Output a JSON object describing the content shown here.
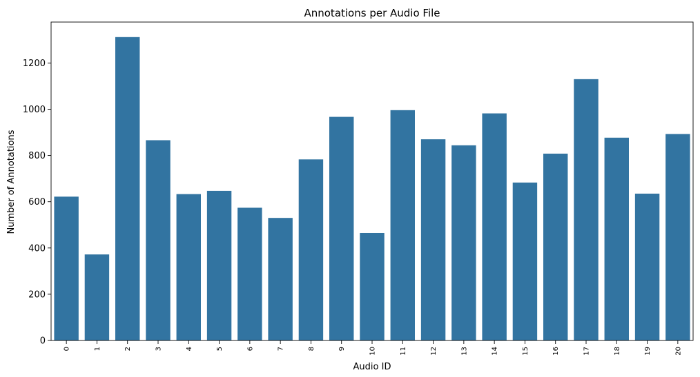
{
  "chart_data": {
    "type": "bar",
    "title": "Annotations per Audio File",
    "xlabel": "Audio ID",
    "ylabel": "Number of Annotations",
    "categories": [
      "0",
      "1",
      "2",
      "3",
      "4",
      "5",
      "6",
      "7",
      "8",
      "9",
      "10",
      "11",
      "12",
      "13",
      "14",
      "15",
      "16",
      "17",
      "18",
      "19",
      "20"
    ],
    "values": [
      622,
      372,
      1312,
      866,
      633,
      647,
      574,
      530,
      783,
      967,
      465,
      996,
      870,
      844,
      982,
      683,
      808,
      1130,
      877,
      635,
      893
    ],
    "ylim": [
      0,
      1377
    ],
    "yticks": [
      0,
      200,
      400,
      600,
      800,
      1000,
      1200
    ],
    "bar_color": "#3274a1",
    "grid": false,
    "legend": "none"
  }
}
